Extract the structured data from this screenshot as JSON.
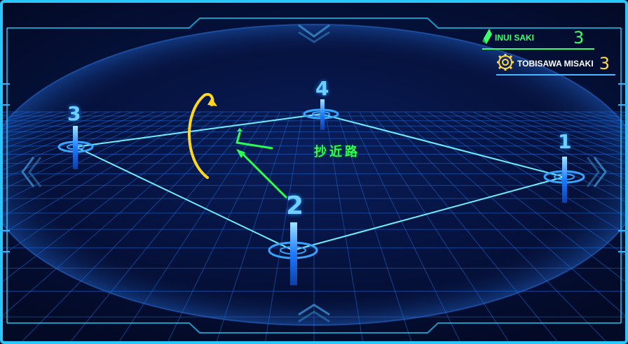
{
  "scoreboard": {
    "player1": {
      "name": "INUI SAKI",
      "score": "3",
      "icon": "crystal-icon",
      "color": "#3dff6a"
    },
    "player2": {
      "name": "TOBISAWA MISAKI",
      "score": "3",
      "icon": "gear-emblem-icon",
      "color": "#ffd84a"
    }
  },
  "course": {
    "markers": [
      {
        "label": "1"
      },
      {
        "label": "2"
      },
      {
        "label": "3"
      },
      {
        "label": "4"
      }
    ],
    "shortcut_label": "抄近路",
    "colors": {
      "grid": "#1e6bd8",
      "course_line": "#6ff0ff",
      "pole": "#1e7bff",
      "shortcut": "#2aff4e",
      "rotation_arrow": "#ffd81e"
    }
  }
}
